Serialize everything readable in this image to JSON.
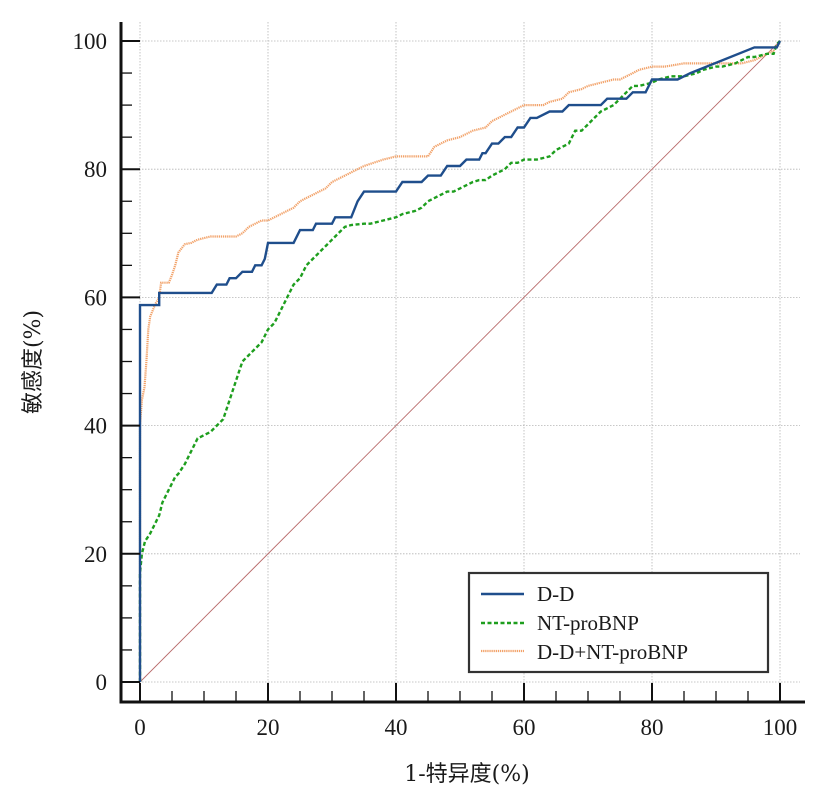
{
  "chart_data": {
    "type": "line",
    "title": "",
    "xlabel": "1-特异度(%)",
    "ylabel": "敏感度(%)",
    "xlim": [
      0,
      100
    ],
    "ylim": [
      0,
      100
    ],
    "grid": true,
    "legend_position": "bottom-right",
    "x_ticks": [
      "0",
      "20",
      "40",
      "60",
      "80",
      "100"
    ],
    "y_ticks": [
      "0",
      "20",
      "40",
      "60",
      "80",
      "100"
    ],
    "x_tick_values": [
      0,
      20,
      40,
      60,
      80,
      100
    ],
    "y_tick_values": [
      0,
      20,
      40,
      60,
      80,
      100
    ],
    "colors": {
      "dd": "#1f4e8c",
      "ntprobnp": "#1e9e1e",
      "combined": "#f2a36b",
      "reference": "#b86a6a",
      "grid": "#b5b5b5",
      "axis": "#111111"
    },
    "series": [
      {
        "name": "D-D",
        "style": "solid",
        "x": [
          0,
          0,
          3,
          3,
          11.2,
          12,
          13.5,
          14,
          15,
          16,
          17.5,
          18,
          19,
          19.5,
          20,
          24,
          25,
          27,
          27.5,
          30,
          30.5,
          33,
          34,
          35,
          40,
          41,
          44,
          45,
          47,
          48,
          50,
          51,
          53,
          53.5,
          54,
          55,
          56,
          57,
          58,
          59,
          60,
          61,
          62,
          64,
          66,
          67,
          72,
          73,
          76,
          77,
          79,
          80,
          84,
          86,
          96,
          98.5,
          99.5,
          100
        ],
        "y": [
          0,
          58.8,
          58.8,
          60.7,
          60.7,
          62,
          62,
          63,
          63,
          64,
          64,
          65,
          65,
          66,
          68.5,
          68.5,
          70.5,
          70.5,
          71.5,
          71.5,
          72.5,
          72.5,
          75,
          76.5,
          76.5,
          78,
          78,
          79,
          79,
          80.5,
          80.5,
          81.5,
          81.5,
          82.5,
          82.5,
          84,
          84,
          85,
          85,
          86.5,
          86.5,
          88,
          88,
          89,
          89,
          90,
          90,
          91,
          91,
          92,
          92,
          94,
          94,
          95,
          99,
          99,
          99,
          100
        ]
      },
      {
        "name": "NT-proBNP",
        "style": "dashed",
        "x": [
          0,
          0,
          0.3,
          0.8,
          1.5,
          2,
          3,
          3.5,
          4,
          4.5,
          5,
          5.5,
          6,
          7,
          8,
          9,
          10,
          11,
          12,
          13,
          14,
          15,
          16,
          17,
          18,
          19,
          19.5,
          20,
          21,
          22,
          23,
          23.5,
          24,
          25,
          26,
          27,
          28,
          29,
          30,
          31,
          32,
          33,
          35,
          36,
          38,
          40,
          41,
          43,
          44,
          45,
          47,
          48,
          49,
          50,
          52,
          53,
          54,
          55,
          57,
          58,
          59,
          60,
          62,
          64,
          65,
          66,
          67,
          68,
          69,
          70,
          71,
          72,
          73,
          74,
          75,
          76,
          77,
          78,
          80,
          81,
          83,
          85,
          87,
          88,
          90,
          91,
          93,
          94,
          95,
          96,
          98,
          99,
          99.5,
          100
        ],
        "y": [
          0,
          17,
          20,
          22,
          23,
          24,
          26,
          28,
          29,
          30,
          31,
          32,
          32.5,
          34,
          36,
          38,
          38.5,
          39,
          40,
          41,
          44,
          47,
          50,
          51,
          52,
          53,
          54,
          55,
          56,
          58,
          60,
          61,
          62,
          63,
          65,
          66,
          67,
          68,
          69,
          70,
          71,
          71.3,
          71.5,
          71.5,
          72,
          72.5,
          73,
          73.5,
          74,
          75,
          76,
          76.5,
          76.5,
          77,
          78,
          78.3,
          78.3,
          79,
          80,
          81,
          81,
          81.5,
          81.5,
          82,
          83,
          83.5,
          84,
          86,
          86,
          87,
          88,
          89,
          89.5,
          90,
          91,
          92,
          93,
          93,
          93.5,
          94,
          94.5,
          94.5,
          95,
          95.5,
          96,
          96,
          96.5,
          97,
          97.5,
          97.5,
          98,
          98,
          99.5,
          100
        ]
      },
      {
        "name": "D-D+NT-proBNP",
        "style": "dotted",
        "x": [
          0,
          0,
          0.3,
          0.7,
          1,
          1.3,
          1.6,
          2,
          2.4,
          3,
          3.3,
          4.5,
          5,
          5.5,
          6,
          7,
          8,
          9,
          11,
          15,
          16,
          17,
          18,
          19,
          20,
          21,
          22,
          23,
          24,
          25,
          26,
          27,
          28,
          29,
          30,
          31,
          32,
          33,
          34,
          35,
          38,
          40,
          45,
          46,
          48,
          50,
          52,
          54,
          55,
          56,
          57,
          58,
          59,
          60,
          63,
          64,
          66,
          67,
          69,
          70,
          72,
          74,
          75,
          77,
          78,
          80,
          82,
          85,
          88,
          90,
          92,
          94,
          96,
          97,
          98,
          99,
          100
        ],
        "y": [
          0,
          40,
          44,
          46,
          50,
          55,
          57,
          58,
          59,
          60,
          62.3,
          62.3,
          63.5,
          65,
          67,
          68.3,
          68.5,
          69,
          69.5,
          69.5,
          70,
          71,
          71.5,
          72,
          72,
          72.5,
          73,
          73.5,
          74,
          75,
          75.5,
          76,
          76.5,
          77,
          78,
          78.5,
          79,
          79.5,
          80,
          80.5,
          81.5,
          82,
          82,
          83.5,
          84.5,
          85,
          86,
          86.5,
          87.5,
          88,
          88.5,
          89,
          89.5,
          90,
          90,
          90.5,
          91,
          92,
          92.5,
          93,
          93.5,
          94,
          94,
          95,
          95.5,
          96,
          96,
          96.5,
          96.5,
          96.5,
          96.5,
          96.5,
          97,
          97.5,
          98,
          98.5,
          100
        ]
      }
    ],
    "reference_line": {
      "name": "chance",
      "x": [
        0,
        100
      ],
      "y": [
        0,
        100
      ]
    },
    "legend": {
      "entries": [
        "D-D",
        "NT-proBNP",
        "D-D+NT-proBNP"
      ]
    }
  }
}
